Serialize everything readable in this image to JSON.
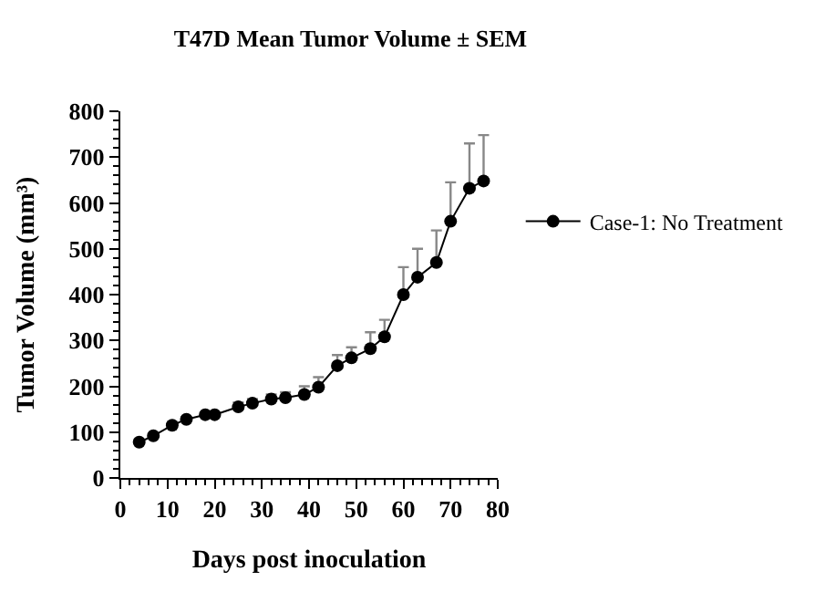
{
  "chart_data": {
    "type": "line",
    "title": "T47D Mean Tumor Volume ± SEM",
    "xlabel": "Days post inoculation",
    "ylabel": "Tumor Volume (mm³)",
    "x": [
      4,
      7,
      11,
      14,
      18,
      20,
      25,
      28,
      32,
      35,
      39,
      42,
      46,
      49,
      53,
      56,
      60,
      63,
      67,
      70,
      74,
      77
    ],
    "series": [
      {
        "name": "Case-1: No Treatment",
        "color": "#000000",
        "values": [
          78,
          92,
          115,
          128,
          138,
          138,
          155,
          163,
          172,
          175,
          182,
          198,
          245,
          262,
          282,
          308,
          400,
          438,
          470,
          560,
          632,
          648
        ],
        "errors": [
          [
            78,
            84
          ],
          [
            92,
            97
          ],
          [
            115,
            120
          ],
          [
            128,
            133
          ],
          [
            138,
            143
          ],
          [
            138,
            143
          ],
          [
            155,
            165
          ],
          [
            163,
            172
          ],
          [
            172,
            182
          ],
          [
            175,
            187
          ],
          [
            182,
            200
          ],
          [
            198,
            220
          ],
          [
            245,
            268
          ],
          [
            262,
            285
          ],
          [
            282,
            318
          ],
          [
            308,
            345
          ],
          [
            400,
            460
          ],
          [
            438,
            500
          ],
          [
            470,
            540
          ],
          [
            560,
            645
          ],
          [
            632,
            730
          ],
          [
            648,
            748
          ]
        ]
      }
    ],
    "xlim": [
      0,
      80
    ],
    "xticks": [
      0,
      10,
      20,
      30,
      40,
      50,
      60,
      70,
      80
    ],
    "ylim": [
      0,
      800
    ],
    "yticks": [
      0,
      100,
      200,
      300,
      400,
      500,
      600,
      700,
      800
    ],
    "legend": "right",
    "marker": "circle",
    "line_style": "solid"
  }
}
